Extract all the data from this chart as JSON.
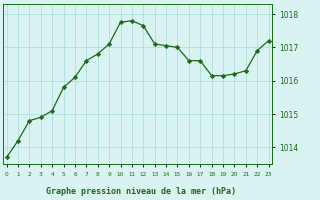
{
  "hours": [
    0,
    1,
    2,
    3,
    4,
    5,
    6,
    7,
    8,
    9,
    10,
    11,
    12,
    13,
    14,
    15,
    16,
    17,
    18,
    19,
    20,
    21,
    22,
    23
  ],
  "pressure": [
    1013.7,
    1014.2,
    1014.8,
    1014.9,
    1015.1,
    1015.8,
    1016.1,
    1016.6,
    1016.8,
    1017.1,
    1017.75,
    1017.8,
    1017.65,
    1017.1,
    1017.05,
    1017.0,
    1016.6,
    1016.6,
    1016.15,
    1016.15,
    1016.2,
    1016.3,
    1016.9,
    1017.2
  ],
  "ylim": [
    1013.5,
    1018.3
  ],
  "yticks": [
    1014,
    1015,
    1016,
    1017,
    1018
  ],
  "line_color": "#1a6b1a",
  "marker_color": "#1a6b1a",
  "bg_color": "#d9f2f2",
  "grid_color": "#b0dede",
  "xlabel": "Graphe pression niveau de la mer (hPa)",
  "xlabel_color": "#1a6b1a",
  "border_color": "#1a6b1a",
  "tick_label_color": "#1a6b1a"
}
